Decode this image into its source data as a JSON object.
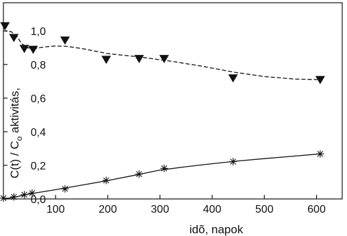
{
  "chart_data": {
    "type": "scatter",
    "title": "",
    "xlabel": "idõ, napok",
    "ylabel": {
      "main": "C(t) / C",
      "subscript": "o",
      "rest": " aktivitás,"
    },
    "xlim": [
      0,
      650
    ],
    "ylim": [
      0.0,
      1.05
    ],
    "x_ticks": [
      100,
      200,
      300,
      400,
      500,
      600
    ],
    "x_tick_labels": [
      "100",
      "200",
      "300",
      "400",
      "500",
      "600"
    ],
    "y_ticks": [
      0.0,
      0.2,
      0.4,
      0.6,
      0.8,
      1.0
    ],
    "y_tick_labels": [
      "0,0",
      "0,2",
      "0,4",
      "0,6",
      "0,8",
      "1,0"
    ],
    "grid": false,
    "legend": "none",
    "series": [
      {
        "marker": "triangle-down",
        "fit_line": "dashed",
        "color": "#111111",
        "x": [
          3,
          20,
          40,
          57,
          118,
          197,
          260,
          308,
          440,
          607
        ],
        "y": [
          1.03,
          0.96,
          0.895,
          0.89,
          0.945,
          0.83,
          0.835,
          0.835,
          0.72,
          0.71
        ],
        "fit": {
          "x": [
            0,
            15,
            25,
            35,
            45,
            60,
            80,
            100,
            120,
            150,
            200,
            260,
            320,
            380,
            440,
            500,
            560,
            607
          ],
          "y": [
            1.0,
            0.995,
            0.97,
            0.925,
            0.9,
            0.895,
            0.905,
            0.91,
            0.908,
            0.895,
            0.865,
            0.845,
            0.82,
            0.79,
            0.755,
            0.728,
            0.713,
            0.71
          ]
        }
      },
      {
        "marker": "asterisk",
        "fit_line": "solid",
        "color": "#111111",
        "x": [
          0,
          20,
          40,
          55,
          118,
          197,
          260,
          308,
          440,
          607
        ],
        "y": [
          0.005,
          0.012,
          0.025,
          0.035,
          0.06,
          0.11,
          0.148,
          0.182,
          0.222,
          0.268
        ],
        "fit": {
          "x": [
            0,
            20,
            50,
            100,
            150,
            200,
            250,
            300,
            350,
            400,
            450,
            500,
            550,
            607
          ],
          "y": [
            0.0,
            0.01,
            0.03,
            0.055,
            0.082,
            0.11,
            0.14,
            0.172,
            0.192,
            0.21,
            0.226,
            0.24,
            0.253,
            0.268
          ]
        }
      }
    ]
  }
}
